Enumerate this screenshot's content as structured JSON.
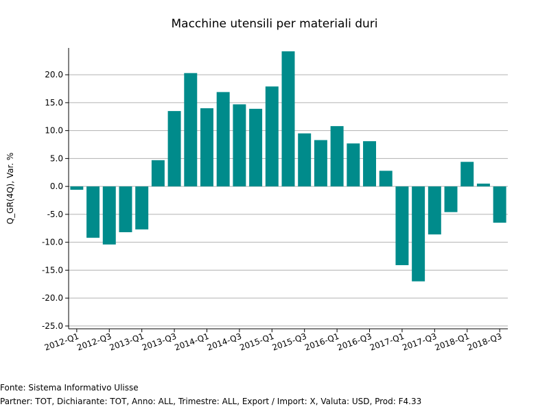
{
  "chart_data": {
    "type": "bar",
    "title": "Macchine utensili per materiali duri",
    "y_label": "Q_GR(4Q), Var. %",
    "source": "Fonte: Sistema Informativo Ulisse",
    "note": "Partner: TOT, Dichiarante: TOT, Anno: ALL, Trimestre: ALL, Export / Import: X, Valuta: USD, Prod: F4.33",
    "categories": [
      "2012-Q1",
      null,
      "2012-Q3",
      null,
      "2013-Q1",
      null,
      "2013-Q3",
      null,
      "2014-Q1",
      null,
      "2014-Q3",
      null,
      "2015-Q1",
      null,
      "2015-Q3",
      null,
      "2016-Q1",
      null,
      "2016-Q3",
      null,
      "2017-Q1",
      null,
      "2017-Q3",
      null,
      "2018-Q1",
      null,
      "2018-Q3"
    ],
    "values": [
      -0.6,
      -9.2,
      -10.4,
      -8.2,
      -7.7,
      4.7,
      13.5,
      20.3,
      14.0,
      16.9,
      14.7,
      13.9,
      17.9,
      24.2,
      9.5,
      8.3,
      10.8,
      7.7,
      8.1,
      2.8,
      -14.1,
      -17.0,
      -8.6,
      -4.6,
      4.4,
      0.5,
      -6.5
    ],
    "color": "#008b8b",
    "ylim": [
      -25.5,
      24.8
    ],
    "yticks": [
      {
        "value": -25,
        "label": "-25.0"
      },
      {
        "value": -20,
        "label": "-20.0"
      },
      {
        "value": -15,
        "label": "-15.0"
      },
      {
        "value": -10,
        "label": "-10.0"
      },
      {
        "value": -5,
        "label": "-5.0"
      },
      {
        "value": 0,
        "label": "0.0"
      },
      {
        "value": 5,
        "label": "5.0"
      },
      {
        "value": 10,
        "label": "10.0"
      },
      {
        "value": 15,
        "label": "15.0"
      },
      {
        "value": 20,
        "label": "20.0"
      }
    ],
    "grid": true
  }
}
